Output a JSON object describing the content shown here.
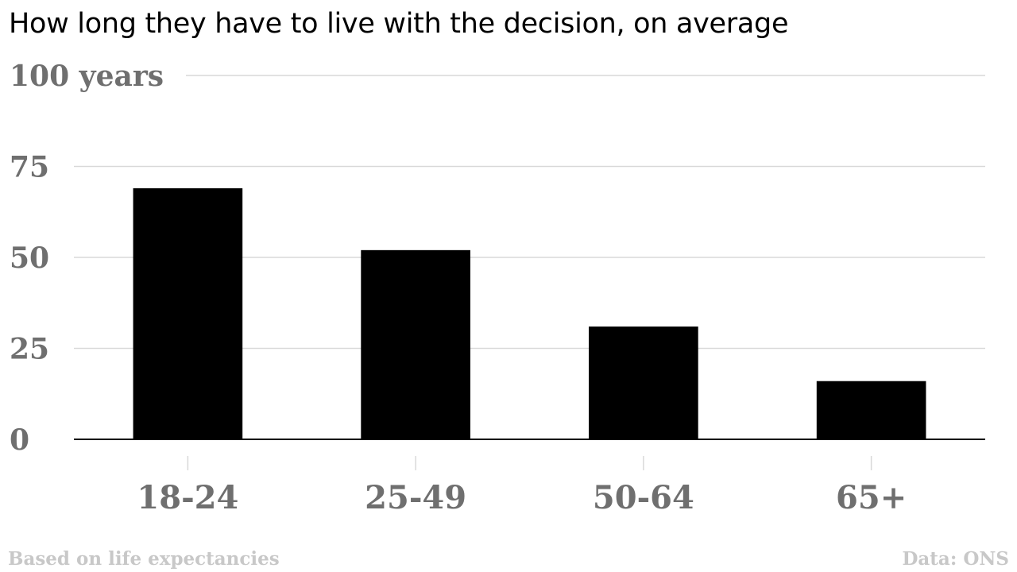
{
  "chart_data": {
    "type": "bar",
    "title": "How long they have to live with the decision, on average",
    "categories": [
      "18-24",
      "25-49",
      "50-64",
      "65+"
    ],
    "values": [
      69,
      52,
      31,
      16
    ],
    "ylim": [
      0,
      100
    ],
    "yticks": [
      0,
      25,
      50,
      75,
      100
    ],
    "ytick_labels": [
      "0",
      "25",
      "50",
      "75",
      "100 years"
    ],
    "bar_color": "#000000",
    "grid": true,
    "grid_color": "#d9d9d9",
    "note": "Based on life expectancies",
    "source": "Data: ONS"
  }
}
